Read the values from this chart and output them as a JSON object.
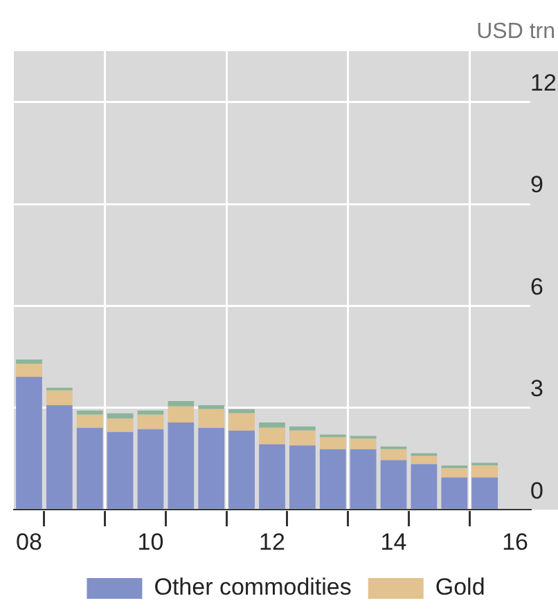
{
  "chart_data": {
    "type": "bar",
    "stacked": true,
    "ylabel": "USD trn",
    "categories": [
      "08",
      null,
      null,
      null,
      "10",
      null,
      null,
      null,
      "12",
      null,
      null,
      null,
      "14",
      null,
      null,
      null,
      "16"
    ],
    "series": [
      {
        "name": "Other commodities",
        "color": "#8190c8",
        "values": [
          3.91,
          3.08,
          2.41,
          2.29,
          2.37,
          2.57,
          2.41,
          2.33,
          1.93,
          1.89,
          1.78,
          1.78,
          1.46,
          1.34,
          0.95,
          0.95,
          null
        ]
      },
      {
        "name": "Gold",
        "color": "#e2c28f",
        "values": [
          0.39,
          0.43,
          0.39,
          0.39,
          0.43,
          0.47,
          0.55,
          0.51,
          0.48,
          0.44,
          0.35,
          0.31,
          0.32,
          0.24,
          0.27,
          0.35,
          null
        ]
      },
      {
        "color": "#8cb49a",
        "values": [
          0.12,
          0.08,
          0.12,
          0.16,
          0.12,
          0.16,
          0.12,
          0.12,
          0.16,
          0.12,
          0.04,
          0.08,
          0.08,
          0.08,
          0.08,
          0.08,
          null
        ]
      }
    ],
    "ylim": [
      0,
      13.5
    ],
    "yticks": [
      0,
      3,
      6,
      9,
      12
    ],
    "grid": true,
    "legend": "bottom"
  }
}
